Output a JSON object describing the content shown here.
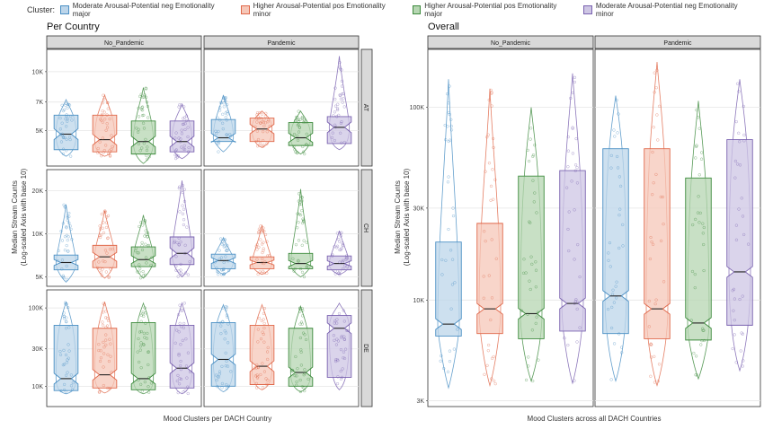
{
  "legend": {
    "title": "Cluster:",
    "items": [
      {
        "label": "Moderate Arousal-Potential neg Emotionality major",
        "color": "#4A8FC4",
        "fill": "#BCD5EA"
      },
      {
        "label": "Higher Arousal-Potential pos Emotionality minor",
        "color": "#E0684A",
        "fill": "#F6C7B8"
      },
      {
        "label": "Higher Arousal-Potential pos Emotionality major",
        "color": "#3C8A3C",
        "fill": "#B6D6B2"
      },
      {
        "label": "Moderate Arousal-Potential neg Emotionality minor",
        "color": "#7A62B0",
        "fill": "#CEC6E4"
      }
    ]
  },
  "chart_data": [
    {
      "type": "boxplot",
      "title": "Per Country",
      "xlabel": "Mood Clusters per DACH Country",
      "ylabel": "Median Stream Counts\n(Log-scaled Axis with base 10)",
      "y_scale": "log10",
      "facet_cols": [
        "No_Pandemic",
        "Pandemic"
      ],
      "facet_rows": [
        {
          "name": "AT",
          "yticks": [
            {
              "v": 5000,
              "label": "5K"
            },
            {
              "v": 7000,
              "label": "7K"
            },
            {
              "v": 10000,
              "label": "10K"
            }
          ],
          "ylim": [
            3300,
            13000
          ]
        },
        {
          "name": "CH",
          "yticks": [
            {
              "v": 5000,
              "label": "5K"
            },
            {
              "v": 10000,
              "label": "10K"
            },
            {
              "v": 20000,
              "label": "20K"
            }
          ],
          "ylim": [
            4300,
            28000
          ]
        },
        {
          "name": "DE",
          "yticks": [
            {
              "v": 10000,
              "label": "10K"
            },
            {
              "v": 30000,
              "label": "30K"
            },
            {
              "v": 100000,
              "label": "100K"
            }
          ],
          "ylim": [
            5500,
            170000
          ]
        }
      ],
      "cells": {
        "AT": {
          "No_Pandemic": [
            {
              "min": 3700,
              "q1": 4000,
              "median": 4800,
              "q3": 6000,
              "max": 7200
            },
            {
              "min": 3700,
              "q1": 3900,
              "median": 4500,
              "q3": 6000,
              "max": 7600
            },
            {
              "min": 3400,
              "q1": 3800,
              "median": 4400,
              "q3": 5600,
              "max": 8300
            },
            {
              "min": 3600,
              "q1": 3900,
              "median": 4400,
              "q3": 5600,
              "max": 6800
            }
          ],
          "Pandemic": [
            {
              "min": 3900,
              "q1": 4400,
              "median": 4600,
              "q3": 5700,
              "max": 7600
            },
            {
              "min": 4100,
              "q1": 4400,
              "median": 5100,
              "q3": 5800,
              "max": 6300
            },
            {
              "min": 3800,
              "q1": 4200,
              "median": 4600,
              "q3": 5500,
              "max": 6300
            },
            {
              "min": 4000,
              "q1": 4300,
              "median": 5200,
              "q3": 5900,
              "max": 12000
            }
          ]
        },
        "CH": {
          "No_Pandemic": [
            {
              "min": 4600,
              "q1": 5600,
              "median": 6300,
              "q3": 7100,
              "max": 16000
            },
            {
              "min": 4900,
              "q1": 5800,
              "median": 6900,
              "q3": 8300,
              "max": 14500
            },
            {
              "min": 4900,
              "q1": 5900,
              "median": 6600,
              "q3": 8100,
              "max": 13500
            },
            {
              "min": 5000,
              "q1": 6100,
              "median": 7300,
              "q3": 9500,
              "max": 23500
            }
          ],
          "Pandemic": [
            {
              "min": 5200,
              "q1": 5700,
              "median": 6500,
              "q3": 7200,
              "max": 9400
            },
            {
              "min": 5200,
              "q1": 5700,
              "median": 6300,
              "q3": 6900,
              "max": 11500
            },
            {
              "min": 5000,
              "q1": 5700,
              "median": 6200,
              "q3": 7300,
              "max": 20500
            },
            {
              "min": 5200,
              "q1": 5600,
              "median": 6200,
              "q3": 7000,
              "max": 10500
            }
          ]
        },
        "DE": {
          "No_Pandemic": [
            {
              "min": 8000,
              "q1": 8800,
              "median": 12500,
              "q3": 60000,
              "max": 120000
            },
            {
              "min": 8200,
              "q1": 9500,
              "median": 14000,
              "q3": 55000,
              "max": 120000
            },
            {
              "min": 8000,
              "q1": 9000,
              "median": 12500,
              "q3": 65000,
              "max": 115000
            },
            {
              "min": 8000,
              "q1": 9500,
              "median": 17000,
              "q3": 60000,
              "max": 115000
            }
          ],
          "Pandemic": [
            {
              "min": 8500,
              "q1": 10000,
              "median": 22000,
              "q3": 65000,
              "max": 110000
            },
            {
              "min": 9000,
              "q1": 10500,
              "median": 18000,
              "q3": 60000,
              "max": 110000
            },
            {
              "min": 8500,
              "q1": 10000,
              "median": 15000,
              "q3": 55000,
              "max": 105000
            },
            {
              "min": 9000,
              "q1": 13000,
              "median": 55000,
              "q3": 80000,
              "max": 115000
            }
          ]
        }
      }
    },
    {
      "type": "boxplot",
      "title": "Overall",
      "xlabel": "Mood Clusters across all DACH Countries",
      "ylabel": "Median Stream Counts\n(Log-scaled Axis with base 10)",
      "y_scale": "log10",
      "facet_cols": [
        "No_Pandemic",
        "Pandemic"
      ],
      "yticks": [
        {
          "v": 3000,
          "label": "3K"
        },
        {
          "v": 10000,
          "label": "10K"
        },
        {
          "v": 30000,
          "label": "30K"
        },
        {
          "v": 100000,
          "label": "100K"
        }
      ],
      "ylim": [
        2800,
        200000
      ],
      "cells": {
        "No_Pandemic": [
          {
            "min": 3500,
            "q1": 6500,
            "median": 7500,
            "q3": 20000,
            "max": 140000
          },
          {
            "min": 3600,
            "q1": 6700,
            "median": 9000,
            "q3": 25000,
            "max": 125000
          },
          {
            "min": 3800,
            "q1": 6300,
            "median": 8500,
            "q3": 44000,
            "max": 100000
          },
          {
            "min": 3700,
            "q1": 6900,
            "median": 9600,
            "q3": 47000,
            "max": 150000
          }
        ],
        "Pandemic": [
          {
            "min": 3800,
            "q1": 6700,
            "median": 10500,
            "q3": 61000,
            "max": 115000
          },
          {
            "min": 3600,
            "q1": 6300,
            "median": 9000,
            "q3": 61000,
            "max": 172000
          },
          {
            "min": 3900,
            "q1": 6200,
            "median": 7600,
            "q3": 43000,
            "max": 108000
          },
          {
            "min": 4300,
            "q1": 7400,
            "median": 14000,
            "q3": 68000,
            "max": 140000
          }
        ]
      }
    }
  ]
}
